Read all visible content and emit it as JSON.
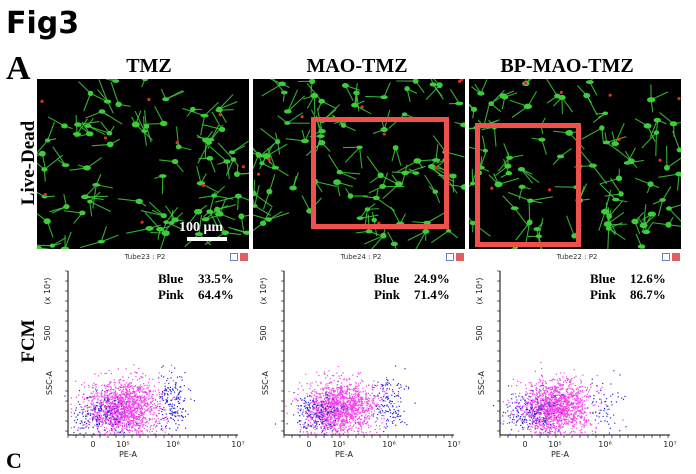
{
  "figure": {
    "title": "Fig3",
    "panel_letter": "A",
    "next_panel_letter": "C"
  },
  "row_labels": {
    "top": "Live-Dead",
    "bottom": "FCM"
  },
  "scale_bar": {
    "label": "100 μm"
  },
  "columns": [
    {
      "title": "TMZ",
      "fcm_tube": "Tube23 : P2",
      "stats": [
        {
          "name": "Blue",
          "value": "33.5%"
        },
        {
          "name": "Pink",
          "value": "64.4%"
        }
      ]
    },
    {
      "title": "MAO-TMZ",
      "fcm_tube": "Tube24 : P2",
      "stats": [
        {
          "name": "Blue",
          "value": "24.9%"
        },
        {
          "name": "Pink",
          "value": "71.4%"
        }
      ]
    },
    {
      "title": "BP-MAO-TMZ",
      "fcm_tube": "Tube22 : P2",
      "stats": [
        {
          "name": "Blue",
          "value": "12.6%"
        },
        {
          "name": "Pink",
          "value": "86.7%"
        }
      ]
    }
  ],
  "fcm_axes": {
    "y_label": "SSC-A",
    "y_exp": "(x 10⁴)",
    "y_tick": "500",
    "x_label": "PE-A",
    "x_ticks": [
      "0",
      "10⁵",
      "10⁶",
      "10⁷"
    ]
  },
  "colors": {
    "highlight_box": "#f0504a",
    "cells_live": "#3dcc3a",
    "cells_dead": "#e03020",
    "pink_population": "#f040e8",
    "blue_population": "#2a2ad0"
  }
}
